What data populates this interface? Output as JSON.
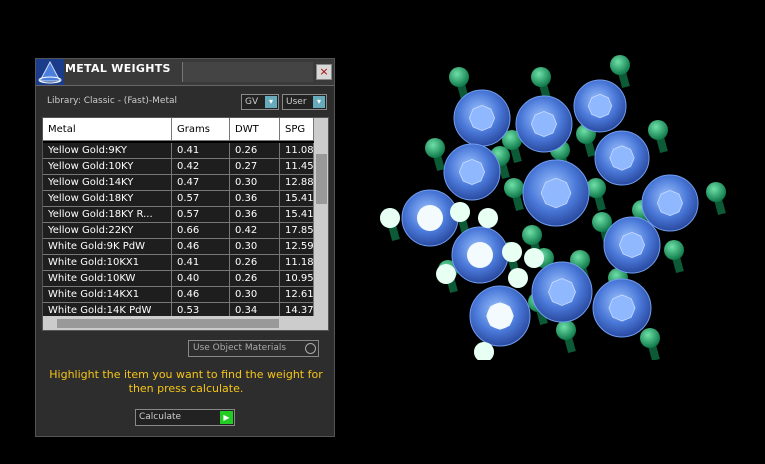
{
  "window": {
    "title": "METAL WEIGHTS",
    "close": "×",
    "library": "Library: Classic - (Fast)-Metal",
    "dropdowns": [
      "GV",
      "User"
    ],
    "table": {
      "columns": [
        "Metal",
        "Grams",
        "DWT",
        "SPG"
      ],
      "rows": [
        [
          "Yellow Gold:9KY",
          "0.41",
          "0.26",
          "11.08"
        ],
        [
          "Yellow Gold:10KY",
          "0.42",
          "0.27",
          "11.45"
        ],
        [
          "Yellow Gold:14KY",
          "0.47",
          "0.30",
          "12.88"
        ],
        [
          "Yellow Gold:18KY",
          "0.57",
          "0.36",
          "15.41"
        ],
        [
          "Yellow Gold:18KY R...",
          "0.57",
          "0.36",
          "15.41"
        ],
        [
          "Yellow Gold:22KY",
          "0.66",
          "0.42",
          "17.85"
        ],
        [
          "White Gold:9K PdW",
          "0.46",
          "0.30",
          "12.59"
        ],
        [
          "White Gold:10KX1",
          "0.41",
          "0.26",
          "11.18"
        ],
        [
          "White Gold:10KW",
          "0.40",
          "0.26",
          "10.95"
        ],
        [
          "White Gold:14KX1",
          "0.46",
          "0.30",
          "12.61"
        ],
        [
          "White Gold:14K PdW",
          "0.53",
          "0.34",
          "14.37"
        ]
      ]
    },
    "checkbox": "Use Object Materials",
    "instruction": "Highlight the item you want to find the weight for then press calculate.",
    "button": "Calculate"
  }
}
